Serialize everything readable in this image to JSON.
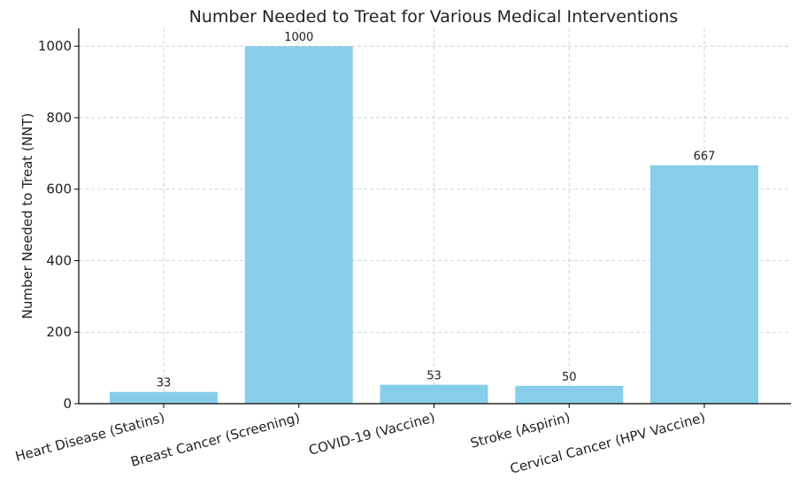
{
  "chart_data": {
    "type": "bar",
    "title": "Number Needed to Treat for Various Medical Interventions",
    "xlabel": "",
    "ylabel": "Number Needed to Treat (NNT)",
    "categories": [
      "Heart Disease (Statins)",
      "Breast Cancer (Screening)",
      "COVID-19 (Vaccine)",
      "Stroke (Aspirin)",
      "Cervical Cancer (HPV Vaccine)"
    ],
    "values": [
      33,
      1000,
      53,
      50,
      667
    ],
    "data_labels": [
      "33",
      "1000",
      "53",
      "50",
      "667"
    ],
    "ylim": [
      0,
      1050
    ],
    "yticks": [
      0,
      200,
      400,
      600,
      800,
      1000
    ],
    "ytick_labels": [
      "0",
      "200",
      "400",
      "600",
      "800",
      "1000"
    ],
    "grid": true,
    "bar_color": "#87ceeb",
    "legend": "none"
  }
}
